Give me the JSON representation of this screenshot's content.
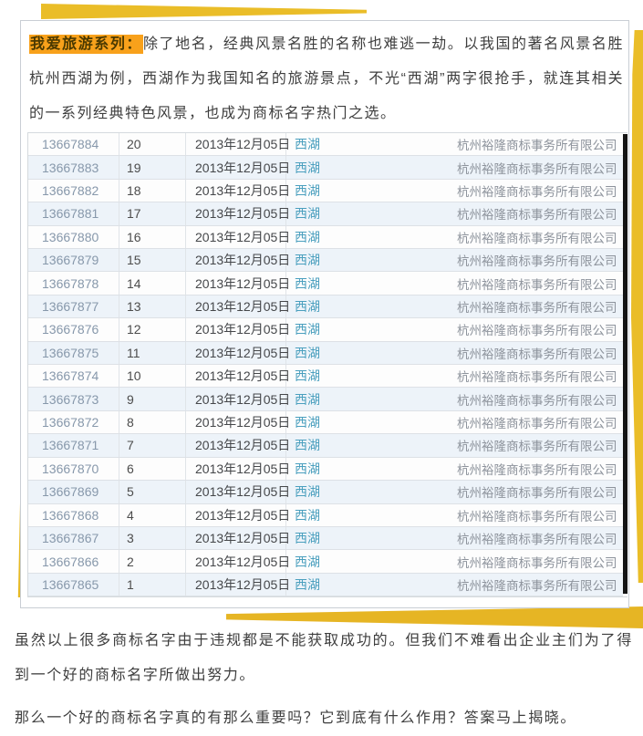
{
  "intro": {
    "highlight": "我爱旅游系列：",
    "text": "除了地名，经典风景名胜的名称也难逃一劫。以我国的著名风景名胜杭州西湖为例，西湖作为我国知名的旅游景点，不光“西湖”两字很抢手，就连其相关的一系列经典特色风景，也成为商标名字热门之选。"
  },
  "table": {
    "rows": [
      {
        "id": "13667884",
        "seq": "20",
        "date": "2013年12月05日",
        "name": "西湖",
        "agent": "杭州裕隆商标事务所有限公司"
      },
      {
        "id": "13667883",
        "seq": "19",
        "date": "2013年12月05日",
        "name": "西湖",
        "agent": "杭州裕隆商标事务所有限公司"
      },
      {
        "id": "13667882",
        "seq": "18",
        "date": "2013年12月05日",
        "name": "西湖",
        "agent": "杭州裕隆商标事务所有限公司"
      },
      {
        "id": "13667881",
        "seq": "17",
        "date": "2013年12月05日",
        "name": "西湖",
        "agent": "杭州裕隆商标事务所有限公司"
      },
      {
        "id": "13667880",
        "seq": "16",
        "date": "2013年12月05日",
        "name": "西湖",
        "agent": "杭州裕隆商标事务所有限公司"
      },
      {
        "id": "13667879",
        "seq": "15",
        "date": "2013年12月05日",
        "name": "西湖",
        "agent": "杭州裕隆商标事务所有限公司"
      },
      {
        "id": "13667878",
        "seq": "14",
        "date": "2013年12月05日",
        "name": "西湖",
        "agent": "杭州裕隆商标事务所有限公司"
      },
      {
        "id": "13667877",
        "seq": "13",
        "date": "2013年12月05日",
        "name": "西湖",
        "agent": "杭州裕隆商标事务所有限公司"
      },
      {
        "id": "13667876",
        "seq": "12",
        "date": "2013年12月05日",
        "name": "西湖",
        "agent": "杭州裕隆商标事务所有限公司"
      },
      {
        "id": "13667875",
        "seq": "11",
        "date": "2013年12月05日",
        "name": "西湖",
        "agent": "杭州裕隆商标事务所有限公司"
      },
      {
        "id": "13667874",
        "seq": "10",
        "date": "2013年12月05日",
        "name": "西湖",
        "agent": "杭州裕隆商标事务所有限公司"
      },
      {
        "id": "13667873",
        "seq": "9",
        "date": "2013年12月05日",
        "name": "西湖",
        "agent": "杭州裕隆商标事务所有限公司"
      },
      {
        "id": "13667872",
        "seq": "8",
        "date": "2013年12月05日",
        "name": "西湖",
        "agent": "杭州裕隆商标事务所有限公司"
      },
      {
        "id": "13667871",
        "seq": "7",
        "date": "2013年12月05日",
        "name": "西湖",
        "agent": "杭州裕隆商标事务所有限公司"
      },
      {
        "id": "13667870",
        "seq": "6",
        "date": "2013年12月05日",
        "name": "西湖",
        "agent": "杭州裕隆商标事务所有限公司"
      },
      {
        "id": "13667869",
        "seq": "5",
        "date": "2013年12月05日",
        "name": "西湖",
        "agent": "杭州裕隆商标事务所有限公司"
      },
      {
        "id": "13667868",
        "seq": "4",
        "date": "2013年12月05日",
        "name": "西湖",
        "agent": "杭州裕隆商标事务所有限公司"
      },
      {
        "id": "13667867",
        "seq": "3",
        "date": "2013年12月05日",
        "name": "西湖",
        "agent": "杭州裕隆商标事务所有限公司"
      },
      {
        "id": "13667866",
        "seq": "2",
        "date": "2013年12月05日",
        "name": "西湖",
        "agent": "杭州裕隆商标事务所有限公司"
      },
      {
        "id": "13667865",
        "seq": "1",
        "date": "2013年12月05日",
        "name": "西湖",
        "agent": "杭州裕隆商标事务所有限公司"
      }
    ]
  },
  "footer": {
    "para1": "虽然以上很多商标名字由于违规都是不能获取成功的。但我们不难看出企业主们为了得到一个好的商标名字所做出努力。",
    "para2": "那么一个好的商标名字真的有那么重要吗？它到底有什么作用？答案马上揭晓。"
  },
  "colors": {
    "ribbon_gold": "#eabd28",
    "highlight_orange": "#f8a11b",
    "row_alt_blue": "#edf3f9",
    "trademark_name_teal": "#4a9fbe",
    "application_id_blue": "#8798ab",
    "agent_gray": "#8d939c",
    "scrollbar_black": "#141414"
  }
}
